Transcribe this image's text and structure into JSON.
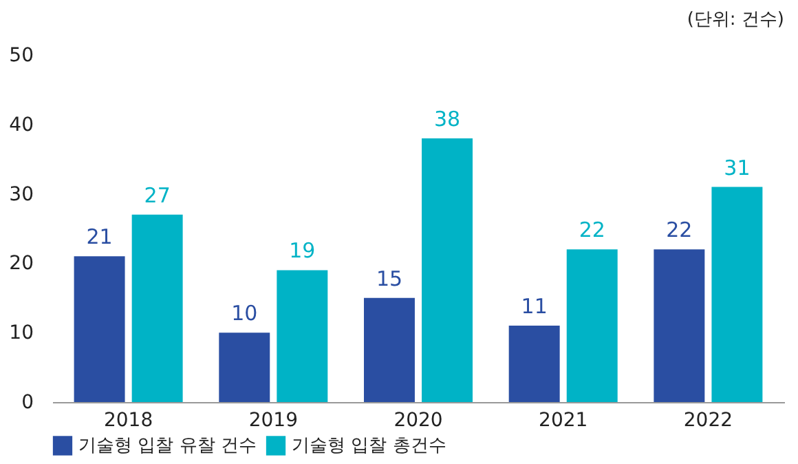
{
  "chart_data": {
    "type": "bar",
    "categories": [
      "2018",
      "2019",
      "2020",
      "2021",
      "2022"
    ],
    "series": [
      {
        "name": "기술형 입찰 유찰 건수",
        "color": "#2a4ea2",
        "values": [
          21,
          10,
          15,
          11,
          22
        ]
      },
      {
        "name": "기술형 입찰 총건수",
        "color": "#00b3c6",
        "values": [
          27,
          19,
          38,
          22,
          31
        ]
      }
    ],
    "ylim": [
      0,
      50
    ],
    "yticks": [
      0,
      10,
      20,
      30,
      40,
      50
    ],
    "annotations": [
      "(단위: 건수)"
    ],
    "data_labels": true,
    "legend": "bottom",
    "grid": false
  }
}
